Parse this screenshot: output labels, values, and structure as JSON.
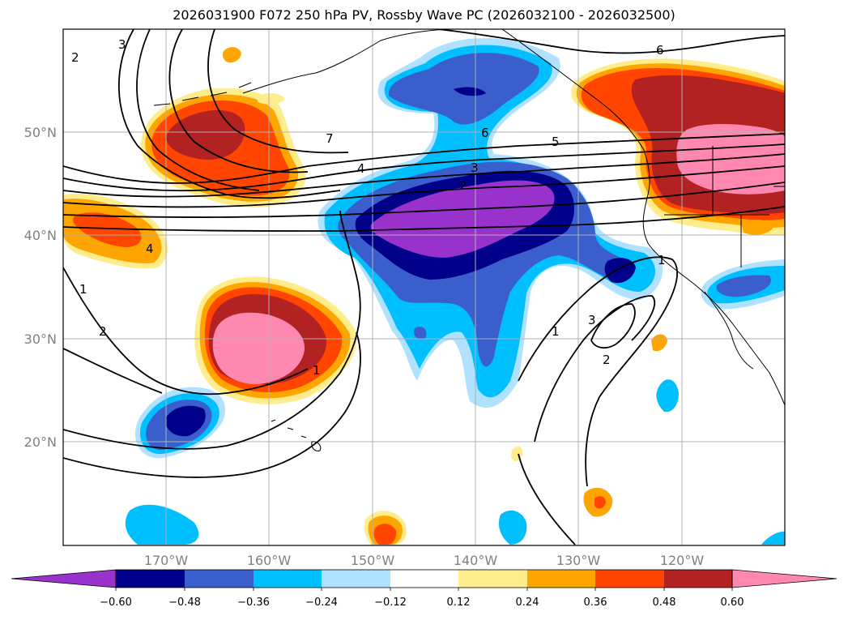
{
  "title": "2026031900 F072 250 hPa PV, Rossby Wave PC (2026032100 - 2026032500)",
  "map": {
    "lon_range": [
      -180,
      -110
    ],
    "lat_range": [
      10,
      60
    ],
    "lat_ticks": [
      {
        "value": 20,
        "label": "20°N"
      },
      {
        "value": 30,
        "label": "30°N"
      },
      {
        "value": 40,
        "label": "40°N"
      },
      {
        "value": 50,
        "label": "50°N"
      }
    ],
    "lon_ticks": [
      {
        "value": -170,
        "label": "170°W"
      },
      {
        "value": -160,
        "label": "160°W"
      },
      {
        "value": -150,
        "label": "150°W"
      },
      {
        "value": -140,
        "label": "140°W"
      },
      {
        "value": -130,
        "label": "130°W"
      },
      {
        "value": -120,
        "label": "120°W"
      }
    ],
    "grid": true,
    "contour_labels": [
      "3",
      "2",
      "6",
      "7",
      "4",
      "6",
      "5",
      "3",
      "2",
      "1",
      "2",
      "1",
      "1",
      "3",
      "2",
      "1",
      "4"
    ]
  },
  "colorbar": {
    "levels": [
      "−0.60",
      "−0.48",
      "−0.36",
      "−0.24",
      "−0.12",
      "0.12",
      "0.24",
      "0.36",
      "0.48",
      "0.60"
    ],
    "colors": [
      "#9932cc",
      "#00008b",
      "#3a5fcd",
      "#00bfff",
      "#b0e2ff",
      "#ffffff",
      "#ffec8b",
      "#ffa500",
      "#ff4500",
      "#b22222",
      "#ff87b0"
    ],
    "extend": "both"
  },
  "colors": {
    "purple": "#9932cc",
    "navy": "#00008b",
    "royal": "#3a5fcd",
    "sky": "#00bfff",
    "pale": "#b0e2ff",
    "yellow": "#ffec8b",
    "orange": "#ffa500",
    "redorange": "#ff4500",
    "firebrick": "#b22222",
    "pink": "#ff87b0"
  }
}
